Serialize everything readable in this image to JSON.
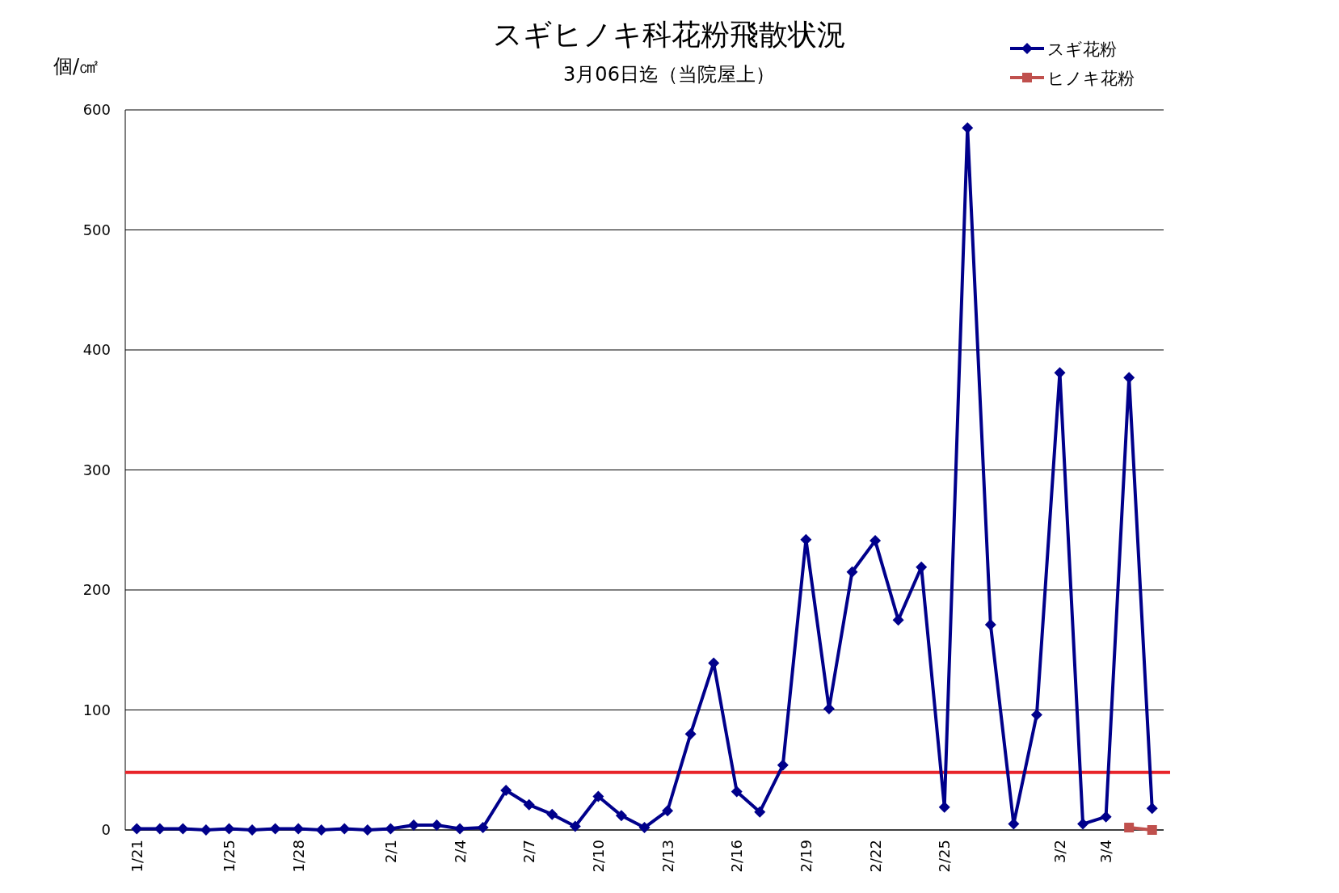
{
  "chart_data": {
    "type": "line",
    "title": "スギヒノキ科花粉飛散状況",
    "subtitle": "3月06日迄（当院屋上）",
    "ylabel": "個/㎠",
    "categories": [
      "1/21",
      null,
      null,
      null,
      "1/25",
      null,
      null,
      "1/28",
      null,
      null,
      null,
      "2/1",
      null,
      null,
      "2/4",
      null,
      null,
      "2/7",
      null,
      null,
      "2/10",
      null,
      null,
      "2/13",
      null,
      null,
      "2/16",
      null,
      null,
      "2/19",
      null,
      null,
      "2/22",
      null,
      null,
      "2/25",
      null,
      null,
      null,
      null,
      "3/2",
      null,
      "3/4",
      null,
      null
    ],
    "series": [
      {
        "name": "スギ花粉",
        "color": "#00008b",
        "marker": "diamond",
        "values": [
          1,
          1,
          1,
          0,
          1,
          0,
          1,
          1,
          0,
          1,
          0,
          1,
          4,
          4,
          1,
          2,
          33,
          21,
          13,
          3,
          28,
          12,
          2,
          16,
          80,
          139,
          32,
          15,
          54,
          242,
          101,
          215,
          241,
          175,
          219,
          19,
          585,
          171,
          5,
          96,
          381,
          5,
          11,
          377,
          18
        ]
      },
      {
        "name": "ヒノキ花粉",
        "color": "#c0504d",
        "marker": "square",
        "values": [
          null,
          null,
          null,
          null,
          null,
          null,
          null,
          null,
          null,
          null,
          null,
          null,
          null,
          null,
          null,
          null,
          null,
          null,
          null,
          null,
          null,
          null,
          null,
          null,
          null,
          null,
          null,
          null,
          null,
          null,
          null,
          null,
          null,
          null,
          null,
          null,
          null,
          null,
          null,
          null,
          null,
          null,
          null,
          2,
          0
        ]
      }
    ],
    "ylim": [
      0,
      600
    ],
    "yticks": [
      0,
      100,
      200,
      300,
      400,
      500,
      600
    ],
    "grid": "y",
    "legend": "top right",
    "ref_lines": [
      {
        "axis": "y",
        "value": 48,
        "color": "#e8242a"
      }
    ]
  }
}
